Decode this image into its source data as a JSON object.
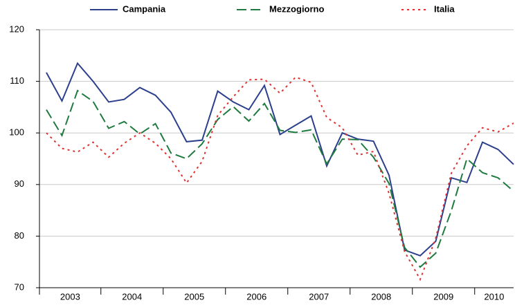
{
  "chart_data": {
    "type": "line",
    "years": [
      "2003",
      "2004",
      "2005",
      "2006",
      "2007",
      "2008",
      "2009",
      "2010"
    ],
    "ylim": [
      70,
      120
    ],
    "yticks": [
      70,
      80,
      90,
      100,
      110,
      120
    ],
    "grid": true,
    "legend": "top",
    "series": [
      {
        "name": "Campania",
        "color": "#2b3f8c",
        "dash": "solid",
        "values": [
          111.7,
          106.2,
          113.5,
          110,
          106,
          106.5,
          108.8,
          107.3,
          104,
          98.3,
          98.6,
          108.1,
          106,
          104.5,
          109.2,
          99.7,
          101.5,
          103.3,
          93.6,
          100,
          98.8,
          98.4,
          91.8,
          77.3,
          76.2,
          79,
          91.3,
          90.4,
          98.2,
          96.8,
          93.9
        ]
      },
      {
        "name": "Mezzogiorno",
        "color": "#1e7a3e",
        "dash": "dashed",
        "values": [
          104.5,
          99.5,
          108.2,
          106.1,
          100.9,
          102.2,
          99.8,
          101.8,
          96.1,
          95,
          97.9,
          102.6,
          105.1,
          102.3,
          105.7,
          100.5,
          100.1,
          100.6,
          94,
          98.8,
          98.7,
          95.3,
          90.2,
          77.8,
          74,
          76.7,
          84.9,
          95,
          92.3,
          91.3,
          88.7
        ]
      },
      {
        "name": "Italia",
        "color": "#e03030",
        "dash": "dotted",
        "values": [
          100,
          97,
          96.3,
          98.2,
          95.3,
          98,
          100,
          98,
          95,
          90.3,
          94.5,
          103.4,
          107,
          110.3,
          110.4,
          107.7,
          110.8,
          109.8,
          103,
          101,
          95.7,
          96.4,
          88.3,
          77,
          71.6,
          79.6,
          92.2,
          97.5,
          101,
          100.2,
          101.9
        ]
      }
    ]
  }
}
